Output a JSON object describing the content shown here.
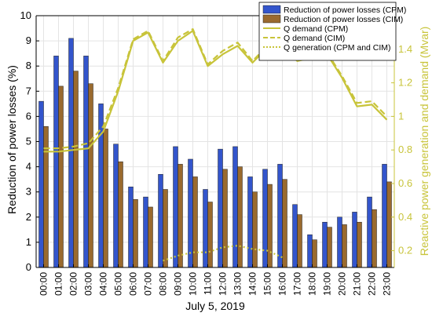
{
  "chart_data": {
    "type": "bar",
    "xlabel": "July 5, 2019",
    "ylabel_left": "Reduction of power losses (%)",
    "ylabel_right": "Reactive power generation and demand (Mvar)",
    "categories": [
      "00:00",
      "01:00",
      "02:00",
      "03:00",
      "04:00",
      "05:00",
      "06:00",
      "07:00",
      "08:00",
      "09:00",
      "10:00",
      "11:00",
      "12:00",
      "13:00",
      "14:00",
      "15:00",
      "16:00",
      "17:00",
      "18:00",
      "19:00",
      "20:00",
      "21:00",
      "22:00",
      "23:00"
    ],
    "ylim_left": [
      0,
      10
    ],
    "yticks_left": [
      "0",
      "1",
      "2",
      "3",
      "4",
      "5",
      "6",
      "7",
      "8",
      "9",
      "10"
    ],
    "ylim_right": [
      0.1,
      1.6
    ],
    "yticks_right": [
      "0.2",
      "0.4",
      "0.6",
      "0.8",
      "1",
      "1.2",
      "1.4"
    ],
    "grid": true,
    "legend_position": "top-right",
    "bar_series": [
      {
        "name": "Reduction of power losses (CPM)",
        "color": "#3355cc",
        "values": [
          6.6,
          8.4,
          9.1,
          8.4,
          6.5,
          4.9,
          3.2,
          2.8,
          3.7,
          4.8,
          4.3,
          3.1,
          4.7,
          4.8,
          3.6,
          3.9,
          4.1,
          2.5,
          1.3,
          1.8,
          2.0,
          2.2,
          2.8,
          4.1
        ]
      },
      {
        "name": "Reduction of power losses (CIM)",
        "color": "#9a6a2e",
        "values": [
          5.6,
          7.2,
          7.8,
          7.3,
          5.5,
          4.2,
          2.7,
          2.4,
          3.1,
          4.1,
          3.6,
          2.6,
          3.9,
          4.0,
          3.0,
          3.3,
          3.5,
          2.1,
          1.1,
          1.6,
          1.7,
          1.8,
          2.3,
          3.4
        ]
      }
    ],
    "line_series": [
      {
        "name": "Q demand (CPM)",
        "color": "#c8c43a",
        "style": "solid",
        "values": [
          0.79,
          0.79,
          0.8,
          0.81,
          0.91,
          1.15,
          1.45,
          1.5,
          1.32,
          1.45,
          1.51,
          1.3,
          1.37,
          1.42,
          1.32,
          1.41,
          1.41,
          1.33,
          1.35,
          1.37,
          1.23,
          1.06,
          1.07,
          0.98
        ]
      },
      {
        "name": "Q demand (CIM)",
        "color": "#c8c43a",
        "style": "dashed",
        "values": [
          0.81,
          0.81,
          0.82,
          0.84,
          0.94,
          1.17,
          1.46,
          1.51,
          1.33,
          1.47,
          1.52,
          1.31,
          1.39,
          1.44,
          1.33,
          1.42,
          1.42,
          1.34,
          1.37,
          1.38,
          1.24,
          1.08,
          1.09,
          1.0
        ]
      },
      {
        "name": "Q generation (CPM and CIM)",
        "color": "#c8c43a",
        "style": "dotted",
        "values": [
          null,
          null,
          null,
          null,
          null,
          null,
          null,
          null,
          0.14,
          0.17,
          0.19,
          0.19,
          0.22,
          0.23,
          0.21,
          0.2,
          0.16,
          null,
          null,
          null,
          null,
          null,
          null,
          null
        ]
      }
    ]
  },
  "colors": {
    "left_axis": "#000000",
    "right_axis": "#c8c43a",
    "grid": "#e4e4e4"
  }
}
